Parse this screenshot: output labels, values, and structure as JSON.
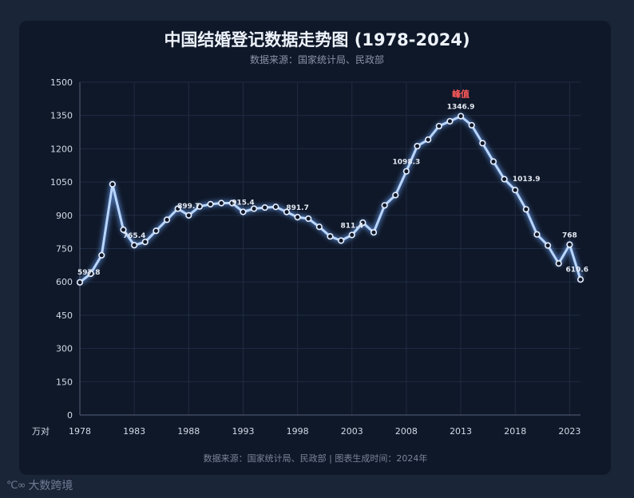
{
  "title": "中国结婚登记数据走势图 (1978-2024)",
  "subtitle": "数据来源：国家统计局、民政部",
  "footer": "数据来源：国家统计局、民政部 | 图表生成时间：2024年",
  "watermark": "大数跨境",
  "colors": {
    "line": "#b9d6ff",
    "glow": "#6fa8ff",
    "point_fill": "#0f1829",
    "peak": "#ff5b5b",
    "grid": "#1f2c42"
  },
  "chart_data": {
    "type": "line",
    "title": "中国结婚登记数据走势图 (1978-2024)",
    "ylabel": "万对",
    "xlabel": "",
    "ylim": [
      0,
      1500
    ],
    "xlim": [
      1978,
      2024
    ],
    "grid": true,
    "y_ticks": [
      0,
      150,
      300,
      450,
      600,
      750,
      900,
      1050,
      1200,
      1350,
      1500
    ],
    "x_ticks": [
      1978,
      1983,
      1988,
      1993,
      1998,
      2003,
      2008,
      2013,
      2018,
      2023
    ],
    "x": [
      1978,
      1979,
      1980,
      1981,
      1982,
      1983,
      1984,
      1985,
      1986,
      1987,
      1988,
      1989,
      1990,
      1991,
      1992,
      1993,
      1994,
      1995,
      1996,
      1997,
      1998,
      1999,
      2000,
      2001,
      2002,
      2003,
      2004,
      2005,
      2006,
      2007,
      2008,
      2009,
      2010,
      2011,
      2012,
      2013,
      2014,
      2015,
      2016,
      2017,
      2018,
      2019,
      2020,
      2021,
      2022,
      2023,
      2024
    ],
    "values": [
      597.8,
      637,
      720,
      1040,
      835,
      765.4,
      780,
      830,
      880,
      930,
      899.7,
      940,
      950,
      955,
      955,
      915.4,
      930,
      935,
      938,
      915,
      891.7,
      885,
      848,
      805,
      786,
      811.4,
      867,
      823,
      945,
      991,
      1098.3,
      1212,
      1241,
      1302,
      1324,
      1346.9,
      1306,
      1225,
      1142,
      1063,
      1013.9,
      927,
      814,
      764,
      683,
      768,
      610.6
    ],
    "labels": [
      {
        "x": 1978,
        "text": "597.8"
      },
      {
        "x": 1983,
        "text": "765.4"
      },
      {
        "x": 1988,
        "text": "899.7"
      },
      {
        "x": 1993,
        "text": "915.4"
      },
      {
        "x": 1998,
        "text": "891.7"
      },
      {
        "x": 2003,
        "text": "811.4"
      },
      {
        "x": 2008,
        "text": "1098.3"
      },
      {
        "x": 2013,
        "text": "1346.9"
      },
      {
        "x": 2018,
        "text": "1013.9"
      },
      {
        "x": 2023,
        "text": "768"
      },
      {
        "x": 2024,
        "text": "610.6"
      }
    ],
    "annotation": {
      "x": 2013,
      "text": "峰值"
    }
  }
}
